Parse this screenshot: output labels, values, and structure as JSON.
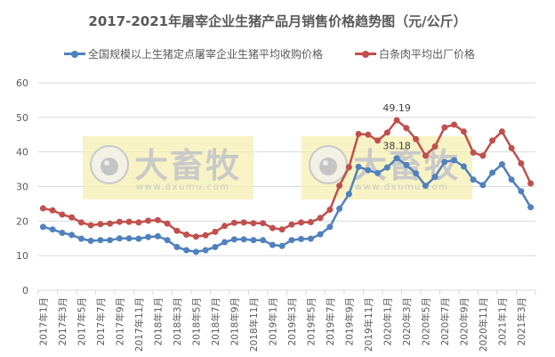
{
  "title": "2017-2021年屠宰企业生猪产品月销售价格趋势图（元/公斤）",
  "legend": [
    {
      "label": "全国规模以上生猪定点屠宰企业生猪平均收购价格",
      "color": "#4F81BD"
    },
    {
      "label": "白条肉平均出厂价格",
      "color": "#C0504D"
    }
  ],
  "watermarks": [
    {
      "brand": "大畜牧",
      "url": "www.dxumu.com"
    },
    {
      "brand": "大畜牧",
      "url": "www.dxumu.com"
    }
  ],
  "chart_data": {
    "type": "line",
    "title": "2017-2021年屠宰企业生猪产品月销售价格趋势图（元/公斤）",
    "xlabel": "",
    "ylabel": "",
    "ylim": [
      0,
      60
    ],
    "yticks": [
      0,
      10,
      20,
      30,
      40,
      50,
      60
    ],
    "grid": true,
    "legend_position": "top",
    "x_tick_labels": [
      "2017年1月",
      "2017年3月",
      "2017年5月",
      "2017年7月",
      "2017年9月",
      "2017年11月",
      "2018年1月",
      "2018年3月",
      "2018年5月",
      "2018年7月",
      "2018年9月",
      "2018年11月",
      "2019年1月",
      "2019年3月",
      "2019年5月",
      "2019年7月",
      "2019年9月",
      "2019年11月",
      "2020年1月",
      "2020年3月",
      "2020年5月",
      "2020年7月",
      "2020年9月",
      "2020年11月",
      "2021年1月",
      "2021年3月"
    ],
    "categories": [
      "2017-01",
      "2017-02",
      "2017-03",
      "2017-04",
      "2017-05",
      "2017-06",
      "2017-07",
      "2017-08",
      "2017-09",
      "2017-10",
      "2017-11",
      "2017-12",
      "2018-01",
      "2018-02",
      "2018-03",
      "2018-04",
      "2018-05",
      "2018-06",
      "2018-07",
      "2018-08",
      "2018-09",
      "2018-10",
      "2018-11",
      "2018-12",
      "2019-01",
      "2019-02",
      "2019-03",
      "2019-04",
      "2019-05",
      "2019-06",
      "2019-07",
      "2019-08",
      "2019-09",
      "2019-10",
      "2019-11",
      "2019-12",
      "2020-01",
      "2020-02",
      "2020-03",
      "2020-04",
      "2020-05",
      "2020-06",
      "2020-07",
      "2020-08",
      "2020-09",
      "2020-10",
      "2020-11",
      "2020-12",
      "2021-01",
      "2021-02",
      "2021-03",
      "2021-04"
    ],
    "series": [
      {
        "name": "全国规模以上生猪定点屠宰企业生猪平均收购价格",
        "color": "#4F81BD",
        "values": [
          18.3,
          17.6,
          16.6,
          16.0,
          14.9,
          14.3,
          14.5,
          14.5,
          15.0,
          15.0,
          14.9,
          15.4,
          15.6,
          14.5,
          12.5,
          11.6,
          11.1,
          11.6,
          12.5,
          13.9,
          14.7,
          14.7,
          14.5,
          14.5,
          13.1,
          12.8,
          14.5,
          14.8,
          14.9,
          16.2,
          18.3,
          23.6,
          27.8,
          35.7,
          34.7,
          33.9,
          35.5,
          38.18,
          36.2,
          33.8,
          30.2,
          32.8,
          37.1,
          37.6,
          35.8,
          32.0,
          30.4,
          34.0,
          36.4,
          32.0,
          28.6,
          24.0
        ]
      },
      {
        "name": "白条肉平均出厂价格",
        "color": "#C0504D",
        "values": [
          23.7,
          23.1,
          21.9,
          21.1,
          19.6,
          18.8,
          19.1,
          19.3,
          19.8,
          19.8,
          19.6,
          20.1,
          20.3,
          19.3,
          17.2,
          16.1,
          15.5,
          15.9,
          16.9,
          18.6,
          19.5,
          19.6,
          19.4,
          19.4,
          18.0,
          17.6,
          19.0,
          19.6,
          19.7,
          20.9,
          23.3,
          30.2,
          35.6,
          45.2,
          45.0,
          43.3,
          45.6,
          49.19,
          46.9,
          43.7,
          38.9,
          41.6,
          47.1,
          47.9,
          45.9,
          39.8,
          38.9,
          43.3,
          45.9,
          41.1,
          36.7,
          30.9
        ]
      }
    ],
    "annotations": [
      {
        "series": 1,
        "category": "2020-02",
        "text": "49.19"
      },
      {
        "series": 0,
        "category": "2020-02",
        "text": "38.18"
      }
    ]
  }
}
